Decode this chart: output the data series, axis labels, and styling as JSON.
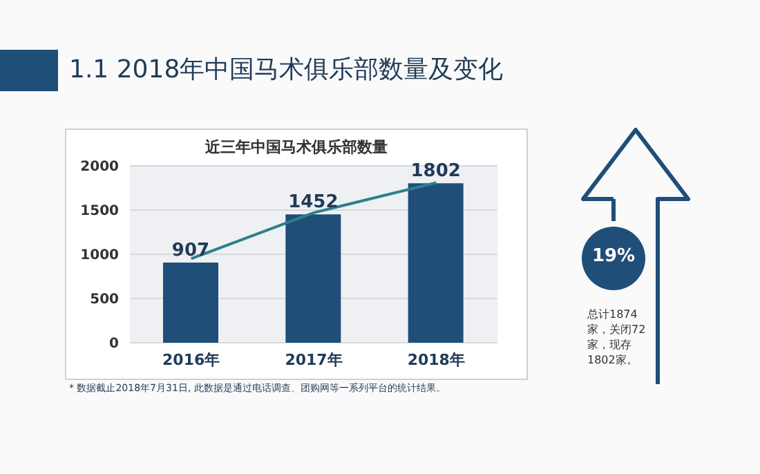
{
  "chart_data": {
    "type": "bar",
    "title": "1.1 2018年中国马术俱乐部数量及变化",
    "subtitle": "近三年中国马术俱乐部数量",
    "categories": [
      "2016年",
      "2017年",
      "2018年"
    ],
    "series": [
      {
        "color": "#1f4e79",
        "values": [
          907,
          1452,
          1802
        ],
        "value_labels": [
          "907",
          "1452",
          "1802"
        ]
      },
      {
        "type": "line",
        "color": "#2e7f8c",
        "values": [
          950,
          1470,
          1810
        ]
      }
    ],
    "ylim": [
      0,
      2000
    ],
    "yticks": [
      0,
      500,
      1000,
      1500,
      2000
    ],
    "grid": "y",
    "marker": "none",
    "line_style": "solid",
    "annotations": [
      "* 数据截止2018年7月31日, 此数据是通过电话调查、团购网等一系列平台的统计结果。",
      "19%",
      "总计1874家，关闭72家，现存1802家。"
    ]
  }
}
